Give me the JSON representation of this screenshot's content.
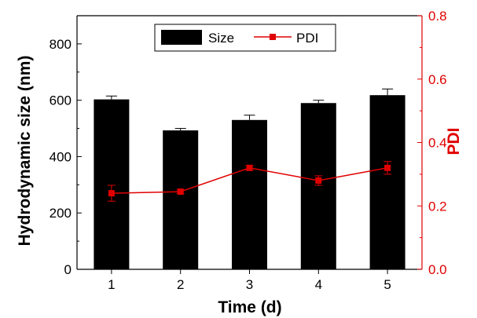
{
  "chart_data": {
    "type": "bar",
    "xlabel": "Time (d)",
    "ylabel": "Hydrodynamic size (nm)",
    "y2label": "PDI",
    "categories": [
      "1",
      "2",
      "3",
      "4",
      "5"
    ],
    "ylim": [
      0,
      900
    ],
    "y2lim": [
      0,
      0.8
    ],
    "yticks": [
      "0",
      "200",
      "400",
      "600",
      "800"
    ],
    "y2ticks": [
      "0.0",
      "0.2",
      "0.4",
      "0.6",
      "0.8"
    ],
    "series": [
      {
        "name": "Size",
        "type": "bar",
        "axis": "left",
        "color": "#000000",
        "values": [
          603,
          493,
          530,
          590,
          618
        ],
        "errors": [
          12,
          7,
          17,
          10,
          22
        ]
      },
      {
        "name": "PDI",
        "type": "line",
        "axis": "right",
        "color": "#e00000",
        "values": [
          0.24,
          0.245,
          0.32,
          0.28,
          0.32
        ],
        "errors": [
          0.025,
          0.006,
          0.008,
          0.015,
          0.02
        ]
      }
    ],
    "legend": "top-center",
    "grid": false
  }
}
